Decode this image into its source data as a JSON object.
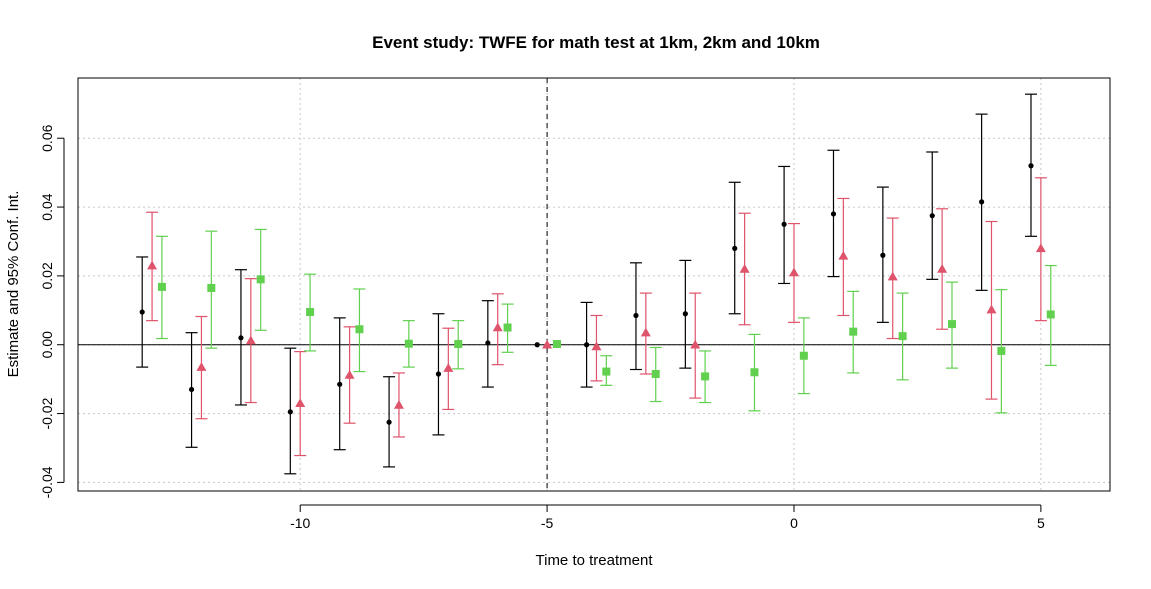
{
  "chart_data": {
    "type": "scatter",
    "title": "Event study: TWFE for math test at 1km, 2km and 10km",
    "xlabel": "Time to treatment",
    "ylabel": "Estimate and 95% Conf. Int.",
    "xlim": [
      -14.5,
      6.4
    ],
    "ylim": [
      -0.0425,
      0.0775
    ],
    "xticks": [
      -10,
      -5,
      0,
      5
    ],
    "xtick_labels": [
      "-10",
      "-5",
      "0",
      "5"
    ],
    "yticks": [
      -0.04,
      -0.02,
      0.0,
      0.02,
      0.04,
      0.06
    ],
    "ytick_labels": [
      "-0.04",
      "-0.02",
      "0.00",
      "0.02",
      "0.04",
      "0.06"
    ],
    "grid": true,
    "reference_vline": -5,
    "reference_hline": 0,
    "x": [
      -13,
      -12,
      -11,
      -10,
      -9,
      -8,
      -7,
      -6,
      -5,
      -4,
      -3,
      -2,
      -1,
      0,
      1,
      2,
      3,
      4,
      5
    ],
    "series": [
      {
        "color": "#000000",
        "marker": "circle",
        "offset": -0.2,
        "estimate": [
          0.0095,
          -0.013,
          0.002,
          -0.0195,
          -0.0115,
          -0.0225,
          -0.0085,
          0.0005,
          0.0,
          0.0,
          0.0085,
          0.009,
          0.028,
          0.035,
          0.038,
          0.026,
          0.0375,
          0.0415,
          0.052
        ],
        "ci_low": [
          -0.0065,
          -0.0298,
          -0.0175,
          -0.0375,
          -0.0305,
          -0.0355,
          -0.0262,
          -0.0123,
          null,
          -0.0123,
          -0.0072,
          -0.0068,
          0.009,
          0.0178,
          0.0198,
          0.0065,
          0.019,
          0.0158,
          0.0315
        ],
        "ci_high": [
          0.0255,
          0.0035,
          0.0218,
          -0.001,
          0.0078,
          -0.0093,
          0.009,
          0.0128,
          null,
          0.0123,
          0.0238,
          0.0245,
          0.0472,
          0.0518,
          0.0565,
          0.0458,
          0.056,
          0.067,
          0.0728
        ]
      },
      {
        "color": "#DF536B",
        "marker": "triangle",
        "offset": 0.0,
        "estimate": [
          0.023,
          -0.0065,
          0.0012,
          -0.017,
          -0.0088,
          -0.0175,
          -0.0068,
          0.005,
          0.0,
          -0.0005,
          0.0035,
          0.0,
          0.022,
          0.021,
          0.0258,
          0.0198,
          0.022,
          0.0102,
          0.028
        ],
        "ci_low": [
          0.007,
          -0.0215,
          -0.0168,
          -0.0322,
          -0.0228,
          -0.0268,
          -0.0188,
          -0.0058,
          null,
          -0.0105,
          -0.0085,
          -0.0155,
          0.0058,
          0.0065,
          0.0085,
          0.0018,
          0.0045,
          -0.0158,
          0.007
        ],
        "ci_high": [
          0.0385,
          0.0082,
          0.0192,
          -0.002,
          0.0052,
          -0.0082,
          0.0048,
          0.0148,
          null,
          0.0085,
          0.015,
          0.015,
          0.0382,
          0.0352,
          0.0425,
          0.0368,
          0.0395,
          0.0358,
          0.0485
        ]
      },
      {
        "color": "#61D04F",
        "marker": "square",
        "offset": 0.2,
        "estimate": [
          0.0168,
          0.0165,
          0.019,
          0.0095,
          0.0045,
          0.0003,
          0.0002,
          0.005,
          0.0002,
          -0.0078,
          -0.0085,
          -0.0092,
          -0.008,
          -0.0032,
          0.0038,
          0.0025,
          0.006,
          -0.0018,
          0.0088
        ],
        "ci_low": [
          0.0018,
          -0.001,
          0.0042,
          -0.0018,
          -0.0078,
          -0.0065,
          -0.007,
          -0.0022,
          null,
          -0.0118,
          -0.0165,
          -0.0168,
          -0.0192,
          -0.0142,
          -0.0082,
          -0.0102,
          -0.0068,
          -0.0198,
          -0.006
        ],
        "ci_high": [
          0.0315,
          0.033,
          0.0335,
          0.0205,
          0.0162,
          0.007,
          0.007,
          0.0118,
          null,
          -0.0032,
          -0.0008,
          -0.0018,
          0.003,
          0.0078,
          0.0155,
          0.015,
          0.0182,
          0.016,
          0.023
        ]
      }
    ]
  }
}
